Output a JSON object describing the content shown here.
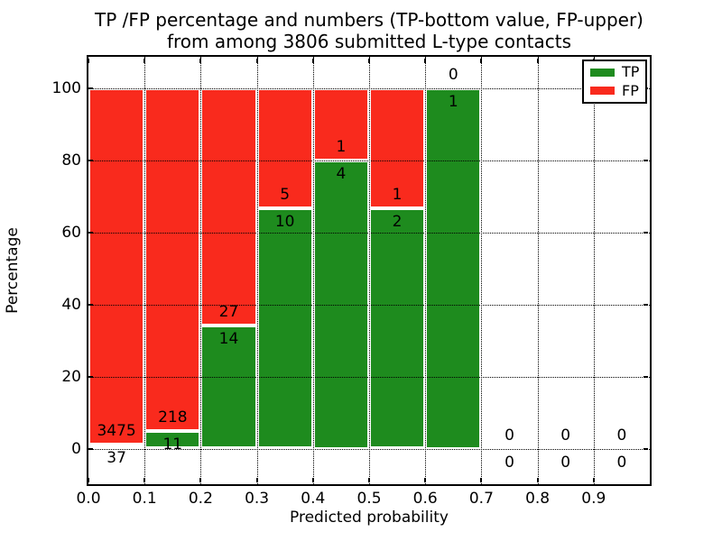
{
  "figure": {
    "title_line1": "TP /FP percentage and numbers (TP-bottom value, FP-upper)",
    "title_line2": "from among 3806 submitted L-type contacts"
  },
  "chart_data": {
    "type": "bar",
    "stacked": true,
    "normalized": "each non-empty bin scaled to 100%",
    "title": "TP /FP percentage and numbers (TP-bottom value, FP-upper) from among 3806 submitted L-type contacts",
    "xlabel": "Predicted probability",
    "ylabel": "Percentage",
    "total_submitted_contacts": 3806,
    "bins": [
      "0.0-0.1",
      "0.1-0.2",
      "0.2-0.3",
      "0.3-0.4",
      "0.4-0.5",
      "0.5-0.6",
      "0.6-0.7",
      "0.7-0.8",
      "0.8-0.9",
      "0.9-1.0"
    ],
    "series": [
      {
        "name": "TP",
        "color": "#1e8b1e",
        "counts": [
          37,
          11,
          14,
          10,
          4,
          2,
          1,
          0,
          0,
          0
        ]
      },
      {
        "name": "FP",
        "color": "#f92a1d",
        "counts": [
          3475,
          218,
          27,
          5,
          1,
          1,
          0,
          0,
          0,
          0
        ]
      }
    ],
    "tp_percent_of_bin": [
      1.05,
      4.8,
      34.1,
      66.7,
      80.0,
      66.7,
      100.0,
      0,
      0,
      0
    ],
    "x_tick_labels": [
      "0.0",
      "0.1",
      "0.2",
      "0.3",
      "0.4",
      "0.5",
      "0.6",
      "0.7",
      "0.8",
      "0.9"
    ],
    "y_tick_labels": [
      "0",
      "20",
      "40",
      "60",
      "80",
      "100"
    ],
    "y_tick_values": [
      0,
      20,
      40,
      60,
      80,
      100
    ],
    "xlim": [
      0.0,
      1.0
    ],
    "ylim": [
      -10,
      109
    ],
    "grid": "dotted, both axes, drawn above bars",
    "legend_position": "upper right",
    "bar_edge_color": "#ffffff"
  }
}
